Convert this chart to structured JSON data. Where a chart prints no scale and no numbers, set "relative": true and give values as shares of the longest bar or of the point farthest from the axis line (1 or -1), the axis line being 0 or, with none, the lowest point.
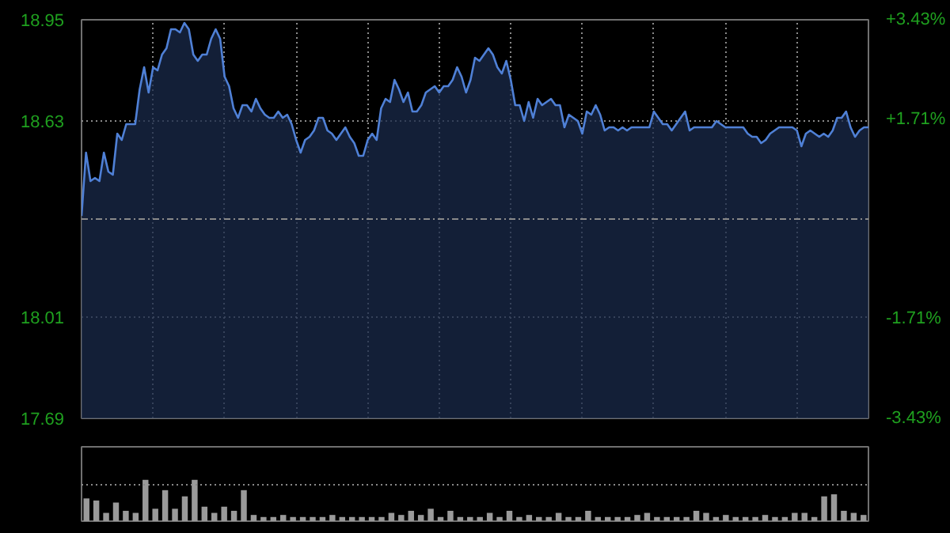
{
  "chart_data": [
    {
      "type": "area",
      "categories": [
        null,
        null,
        null,
        null,
        null,
        null,
        null,
        null,
        null,
        null,
        null,
        null,
        null,
        null,
        null,
        null,
        null,
        null,
        null,
        null,
        null,
        null,
        null,
        null,
        null,
        null,
        null,
        null,
        null,
        null,
        null,
        null,
        null,
        null,
        null,
        null,
        null,
        null,
        null,
        null,
        null,
        null,
        null,
        null,
        null,
        null,
        null,
        null,
        null,
        null,
        null,
        null,
        null,
        null,
        null,
        null,
        null,
        null,
        null,
        null,
        null,
        null,
        null,
        null,
        null,
        null,
        null,
        null,
        null,
        null,
        null,
        null,
        null,
        null,
        null,
        null,
        null,
        null,
        null,
        null,
        null,
        null,
        null,
        null,
        null,
        null,
        null,
        null,
        null,
        null,
        null,
        null,
        null,
        null,
        null,
        null,
        null,
        null,
        null,
        null,
        null,
        null,
        null,
        null,
        null,
        null,
        null,
        null,
        null,
        null,
        null,
        null,
        null,
        null,
        null,
        null,
        null,
        null,
        null,
        null,
        null,
        null,
        null,
        null,
        null,
        null,
        null,
        null,
        null,
        null,
        null,
        null,
        null,
        null,
        null,
        null,
        null,
        null,
        null,
        null,
        null,
        null,
        null,
        null,
        null,
        null,
        null,
        null,
        null,
        null,
        null,
        null,
        null,
        null,
        null,
        null,
        null,
        null,
        null,
        null,
        null,
        null,
        null,
        null,
        null,
        null,
        null,
        null,
        null,
        null,
        null,
        null,
        null,
        null,
        null,
        null,
        null
      ],
      "series": [
        {
          "color": "#4f80d6",
          "values": [
            18.33,
            18.53,
            18.44,
            18.45,
            18.44,
            18.53,
            18.47,
            18.46,
            18.59,
            18.57,
            18.62,
            18.62,
            18.62,
            18.73,
            18.8,
            18.72,
            18.8,
            18.79,
            18.84,
            18.86,
            18.92,
            18.92,
            18.91,
            18.94,
            18.92,
            18.84,
            18.82,
            18.84,
            18.84,
            18.89,
            18.92,
            18.89,
            18.77,
            18.74,
            18.67,
            18.64,
            18.68,
            18.68,
            18.66,
            18.7,
            18.67,
            18.65,
            18.64,
            18.64,
            18.66,
            18.64,
            18.65,
            18.62,
            18.57,
            18.53,
            18.57,
            18.58,
            18.6,
            18.64,
            18.64,
            18.6,
            18.59,
            18.57,
            18.59,
            18.61,
            18.58,
            18.56,
            18.52,
            18.52,
            18.57,
            18.59,
            18.57,
            18.67,
            18.7,
            18.69,
            18.76,
            18.73,
            18.69,
            18.72,
            18.66,
            18.66,
            18.68,
            18.72,
            18.73,
            18.74,
            18.72,
            18.74,
            18.74,
            18.76,
            18.8,
            18.77,
            18.72,
            18.76,
            18.83,
            18.82,
            18.84,
            18.86,
            18.84,
            18.8,
            18.78,
            18.82,
            18.76,
            18.68,
            18.68,
            18.63,
            18.69,
            18.64,
            18.7,
            18.68,
            18.69,
            18.7,
            18.68,
            18.68,
            18.61,
            18.65,
            18.64,
            18.63,
            18.59,
            18.66,
            18.65,
            18.68,
            18.65,
            18.6,
            18.61,
            18.61,
            18.6,
            18.61,
            18.6,
            18.61,
            18.61,
            18.61,
            18.61,
            18.61,
            18.66,
            18.64,
            18.62,
            18.62,
            18.6,
            18.62,
            18.64,
            18.66,
            18.6,
            18.61,
            18.61,
            18.61,
            18.61,
            18.61,
            18.63,
            18.62,
            18.61,
            18.61,
            18.61,
            18.61,
            18.61,
            18.59,
            18.58,
            18.58,
            18.56,
            18.57,
            18.59,
            18.6,
            18.61,
            18.61,
            18.61,
            18.61,
            18.6,
            18.55,
            18.59,
            18.6,
            18.59,
            18.58,
            18.59,
            18.58,
            18.6,
            18.64,
            18.64,
            18.66,
            18.61,
            18.58,
            18.6,
            18.61,
            18.61
          ]
        }
      ],
      "ylim": [
        17.69,
        18.95
      ],
      "yticks": [
        18.95,
        18.63,
        18.01,
        17.69
      ],
      "y2lim": [
        -3.43,
        3.43
      ],
      "y2ticks": [
        {
          "value": 3.43,
          "label": "+3.43%"
        },
        {
          "value": 1.71,
          "label": "+1.71%"
        },
        {
          "value": -1.71,
          "label": "-1.71%"
        },
        {
          "value": -3.43,
          "label": "-3.43%"
        }
      ],
      "ref_lines": [
        {
          "axis": "y",
          "value": 18.32,
          "line_style": "dashed"
        }
      ],
      "grid": true,
      "tick_labels": "y"
    },
    {
      "type": "bar",
      "relative": true,
      "tick_labels": false,
      "ref_lines": [
        {
          "axis": "y",
          "value": 0.88,
          "line_style": "dotted"
        }
      ],
      "categories": [
        null,
        null,
        null,
        null,
        null,
        null,
        null,
        null,
        null,
        null,
        null,
        null,
        null,
        null,
        null,
        null,
        null,
        null,
        null,
        null,
        null,
        null,
        null,
        null,
        null,
        null,
        null,
        null,
        null,
        null,
        null,
        null,
        null,
        null,
        null,
        null,
        null,
        null,
        null,
        null,
        null,
        null,
        null,
        null,
        null,
        null,
        null,
        null,
        null,
        null,
        null,
        null,
        null,
        null,
        null,
        null,
        null,
        null,
        null,
        null,
        null,
        null,
        null,
        null,
        null,
        null,
        null,
        null,
        null,
        null,
        null,
        null,
        null,
        null,
        null,
        null,
        null,
        null,
        null,
        null
      ],
      "values": [
        0.55,
        0.5,
        0.2,
        0.45,
        0.25,
        0.2,
        1.0,
        0.3,
        0.75,
        0.3,
        0.6,
        1.0,
        0.35,
        0.2,
        0.35,
        0.25,
        0.75,
        0.15,
        0.1,
        0.1,
        0.15,
        0.1,
        0.1,
        0.1,
        0.1,
        0.15,
        0.1,
        0.1,
        0.1,
        0.1,
        0.1,
        0.2,
        0.15,
        0.25,
        0.15,
        0.3,
        0.1,
        0.25,
        0.1,
        0.1,
        0.1,
        0.2,
        0.1,
        0.25,
        0.1,
        0.15,
        0.1,
        0.1,
        0.2,
        0.1,
        0.1,
        0.25,
        0.1,
        0.1,
        0.1,
        0.1,
        0.15,
        0.2,
        0.1,
        0.1,
        0.1,
        0.1,
        0.25,
        0.2,
        0.1,
        0.15,
        0.1,
        0.1,
        0.1,
        0.15,
        0.1,
        0.1,
        0.2,
        0.2,
        0.1,
        0.6,
        0.65,
        0.25,
        0.2,
        0.15
      ],
      "color": "#9a9a9a"
    }
  ]
}
